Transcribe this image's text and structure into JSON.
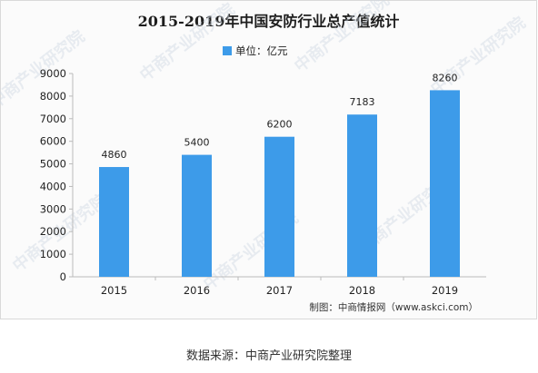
{
  "chart_data": {
    "type": "bar",
    "title": "2015-2019年中国安防行业总产值统计",
    "legend": {
      "label": "单位：亿元",
      "placement": "top-center"
    },
    "categories": [
      "2015",
      "2016",
      "2017",
      "2018",
      "2019"
    ],
    "series": [
      {
        "values": [
          4860,
          5400,
          6200,
          7183,
          8260
        ]
      }
    ],
    "data_labels": [
      "4860",
      "5400",
      "6200",
      "7183",
      "8260"
    ],
    "y_ticks": [
      "0",
      "1000",
      "2000",
      "3000",
      "4000",
      "5000",
      "6000",
      "7000",
      "8000",
      "9000"
    ],
    "ylim": [
      0,
      9000
    ],
    "grid": false,
    "bar_color": "#3d9be9",
    "credit": "制图：中商情报网（www.askci.com）",
    "watermark": "中商产业研究院"
  },
  "footer": "数据来源：中商产业研究院整理"
}
